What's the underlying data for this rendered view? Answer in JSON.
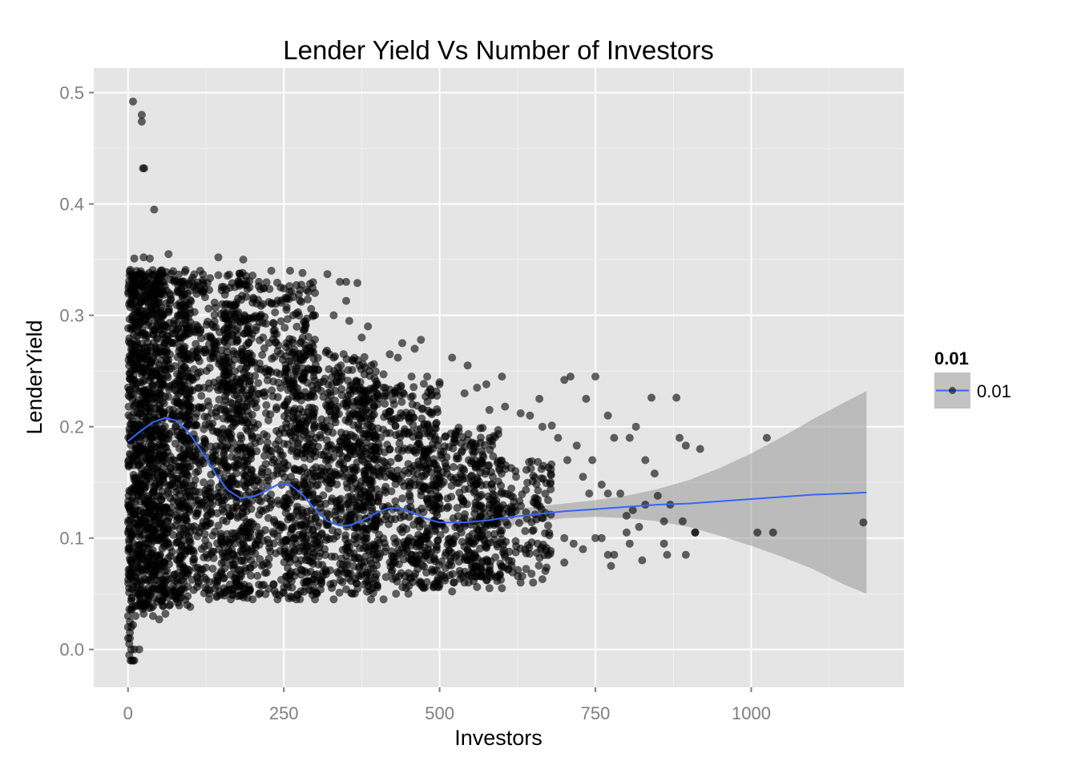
{
  "chart_data": {
    "type": "scatter",
    "title": "Lender Yield Vs Number of Investors",
    "xlabel": "Investors",
    "ylabel": "LenderYield",
    "xlim": [
      -55,
      1245
    ],
    "ylim": [
      -0.034,
      0.522
    ],
    "x_ticks": [
      0,
      250,
      500,
      750,
      1000
    ],
    "x_tick_labels": [
      "0",
      "250",
      "500",
      "750",
      "1000"
    ],
    "y_ticks": [
      0.0,
      0.1,
      0.2,
      0.3,
      0.4,
      0.5
    ],
    "y_tick_labels": [
      "0.0",
      "0.1",
      "0.2",
      "0.3",
      "0.4",
      "0.5"
    ],
    "grid": true,
    "legend": {
      "title": "0.01",
      "position": "right",
      "entries": [
        {
          "label": "0.01"
        }
      ]
    },
    "colors": {
      "panel_background": "#e5e5e5",
      "grid": "#ffffff",
      "points": "#000000",
      "smooth_line": "#3366ff",
      "confidence_band": "#999999"
    },
    "point_alpha": 0.6,
    "points": [
      [
        8,
        0.492
      ],
      [
        22,
        0.48
      ],
      [
        22,
        0.474
      ],
      [
        24,
        0.432
      ],
      [
        26,
        0.432
      ],
      [
        42,
        0.395
      ],
      [
        10,
        0.351
      ],
      [
        25,
        0.352
      ],
      [
        35,
        0.351
      ],
      [
        65,
        0.355
      ],
      [
        145,
        0.352
      ],
      [
        185,
        0.35
      ],
      [
        230,
        0.34
      ],
      [
        260,
        0.34
      ],
      [
        280,
        0.338
      ],
      [
        320,
        0.337
      ],
      [
        340,
        0.33
      ],
      [
        350,
        0.33
      ],
      [
        210,
        0.33
      ],
      [
        245,
        0.325
      ],
      [
        300,
        0.32
      ],
      [
        350,
        0.313
      ],
      [
        368,
        0.329
      ],
      [
        265,
        0.3
      ],
      [
        300,
        0.3
      ],
      [
        330,
        0.3
      ],
      [
        355,
        0.295
      ],
      [
        375,
        0.28
      ],
      [
        385,
        0.29
      ],
      [
        330,
        0.262
      ],
      [
        360,
        0.26
      ],
      [
        390,
        0.255
      ],
      [
        410,
        0.247
      ],
      [
        420,
        0.265
      ],
      [
        433,
        0.262
      ],
      [
        455,
        0.245
      ],
      [
        440,
        0.275
      ],
      [
        460,
        0.27
      ],
      [
        470,
        0.278
      ],
      [
        480,
        0.245
      ],
      [
        500,
        0.24
      ],
      [
        520,
        0.262
      ],
      [
        540,
        0.23
      ],
      [
        545,
        0.255
      ],
      [
        560,
        0.235
      ],
      [
        575,
        0.238
      ],
      [
        600,
        0.245
      ],
      [
        580,
        0.215
      ],
      [
        605,
        0.218
      ],
      [
        630,
        0.212
      ],
      [
        645,
        0.21
      ],
      [
        660,
        0.225
      ],
      [
        665,
        0.2
      ],
      [
        680,
        0.201
      ],
      [
        690,
        0.19
      ],
      [
        700,
        0.242
      ],
      [
        710,
        0.245
      ],
      [
        735,
        0.225
      ],
      [
        750,
        0.245
      ],
      [
        705,
        0.17
      ],
      [
        720,
        0.183
      ],
      [
        745,
        0.17
      ],
      [
        770,
        0.21
      ],
      [
        780,
        0.19
      ],
      [
        805,
        0.19
      ],
      [
        815,
        0.2
      ],
      [
        830,
        0.17
      ],
      [
        840,
        0.226
      ],
      [
        845,
        0.158
      ],
      [
        880,
        0.226
      ],
      [
        885,
        0.19
      ],
      [
        895,
        0.183
      ],
      [
        918,
        0.18
      ],
      [
        1025,
        0.19
      ],
      [
        730,
        0.155
      ],
      [
        740,
        0.14
      ],
      [
        760,
        0.148
      ],
      [
        770,
        0.14
      ],
      [
        790,
        0.14
      ],
      [
        800,
        0.12
      ],
      [
        810,
        0.125
      ],
      [
        820,
        0.11
      ],
      [
        830,
        0.13
      ],
      [
        850,
        0.138
      ],
      [
        860,
        0.115
      ],
      [
        870,
        0.13
      ],
      [
        890,
        0.115
      ],
      [
        910,
        0.105
      ],
      [
        1010,
        0.105
      ],
      [
        1035,
        0.105
      ],
      [
        1180,
        0.114
      ],
      [
        700,
        0.1
      ],
      [
        715,
        0.095
      ],
      [
        730,
        0.09
      ],
      [
        750,
        0.1
      ],
      [
        760,
        0.1
      ],
      [
        770,
        0.085
      ],
      [
        775,
        0.075
      ],
      [
        780,
        0.085
      ],
      [
        800,
        0.105
      ],
      [
        805,
        0.095
      ],
      [
        825,
        0.08
      ],
      [
        860,
        0.095
      ],
      [
        865,
        0.085
      ],
      [
        895,
        0.085
      ],
      [
        910,
        0.105
      ],
      [
        700,
        0.078
      ],
      [
        665,
        0.063
      ],
      [
        650,
        0.06
      ],
      [
        630,
        0.06
      ],
      [
        600,
        0.055
      ],
      [
        580,
        0.055
      ],
      [
        560,
        0.056
      ],
      [
        540,
        0.06
      ],
      [
        520,
        0.052
      ],
      [
        500,
        0.058
      ],
      [
        470,
        0.06
      ],
      [
        450,
        0.05
      ],
      [
        430,
        0.05
      ],
      [
        410,
        0.045
      ],
      [
        390,
        0.045
      ],
      [
        360,
        0.05
      ],
      [
        330,
        0.045
      ],
      [
        300,
        0.045
      ],
      [
        270,
        0.045
      ],
      [
        240,
        0.045
      ],
      [
        200,
        0.045
      ],
      [
        165,
        0.045
      ],
      [
        130,
        0.045
      ],
      [
        95,
        0.04
      ],
      [
        80,
        0.042
      ],
      [
        60,
        0.032
      ],
      [
        50,
        0.027
      ],
      [
        40,
        0.03
      ],
      [
        25,
        0.032
      ],
      [
        12,
        0.03
      ],
      [
        8,
        0.022
      ],
      [
        5,
        0.02
      ],
      [
        3,
        0.025
      ],
      [
        3,
        0.015
      ],
      [
        3,
        0.01
      ],
      [
        2,
        0.005
      ],
      [
        5,
        0.0
      ],
      [
        10,
        0.0
      ],
      [
        18,
        0.0
      ],
      [
        2,
        -0.005
      ],
      [
        4,
        -0.01
      ],
      [
        6,
        -0.01
      ],
      [
        10,
        -0.01
      ],
      [
        8,
        -0.01
      ],
      [
        0,
        0.01
      ],
      [
        0,
        0.02
      ],
      [
        0,
        0.03
      ]
    ],
    "dense_regions": [
      {
        "x": [
          0,
          100
        ],
        "y": [
          0.038,
          0.341
        ],
        "count": 900
      },
      {
        "x": [
          0,
          60
        ],
        "y": [
          0.035,
          0.34
        ],
        "count": 500
      },
      {
        "x": [
          80,
          200
        ],
        "y": [
          0.045,
          0.34
        ],
        "count": 700
      },
      {
        "x": [
          150,
          300
        ],
        "y": [
          0.045,
          0.33
        ],
        "count": 650
      },
      {
        "x": [
          250,
          400
        ],
        "y": [
          0.05,
          0.27
        ],
        "count": 650
      },
      {
        "x": [
          350,
          500
        ],
        "y": [
          0.055,
          0.24
        ],
        "count": 500
      },
      {
        "x": [
          450,
          600
        ],
        "y": [
          0.058,
          0.2
        ],
        "count": 380
      },
      {
        "x": [
          550,
          680
        ],
        "y": [
          0.065,
          0.17
        ],
        "count": 220
      }
    ],
    "smooth_line": {
      "name": "0.01",
      "x": [
        0,
        20,
        40,
        60,
        80,
        100,
        120,
        140,
        160,
        180,
        200,
        220,
        240,
        250,
        260,
        280,
        300,
        320,
        340,
        350,
        360,
        380,
        400,
        420,
        430,
        440,
        460,
        480,
        500,
        520,
        540,
        560,
        580,
        600,
        650,
        700,
        750,
        800,
        850,
        900,
        950,
        1000,
        1050,
        1100,
        1150,
        1185
      ],
      "y": [
        0.187,
        0.196,
        0.204,
        0.208,
        0.205,
        0.193,
        0.176,
        0.158,
        0.143,
        0.136,
        0.137,
        0.142,
        0.148,
        0.149,
        0.148,
        0.139,
        0.126,
        0.115,
        0.111,
        0.111,
        0.112,
        0.117,
        0.123,
        0.127,
        0.127,
        0.126,
        0.122,
        0.117,
        0.114,
        0.114,
        0.114,
        0.115,
        0.116,
        0.118,
        0.121,
        0.124,
        0.126,
        0.128,
        0.13,
        0.131,
        0.133,
        0.135,
        0.137,
        0.139,
        0.14,
        0.141
      ]
    },
    "confidence_band": {
      "x": [
        0,
        100,
        200,
        300,
        400,
        500,
        550,
        600,
        650,
        700,
        750,
        800,
        850,
        900,
        950,
        1000,
        1050,
        1100,
        1150,
        1185
      ],
      "lower": [
        0.185,
        0.191,
        0.135,
        0.124,
        0.121,
        0.111,
        0.109,
        0.11,
        0.114,
        0.118,
        0.119,
        0.118,
        0.115,
        0.11,
        0.102,
        0.093,
        0.083,
        0.072,
        0.058,
        0.05
      ],
      "upper": [
        0.189,
        0.195,
        0.139,
        0.128,
        0.125,
        0.117,
        0.119,
        0.125,
        0.128,
        0.131,
        0.134,
        0.138,
        0.144,
        0.152,
        0.163,
        0.176,
        0.191,
        0.207,
        0.222,
        0.232
      ]
    }
  }
}
